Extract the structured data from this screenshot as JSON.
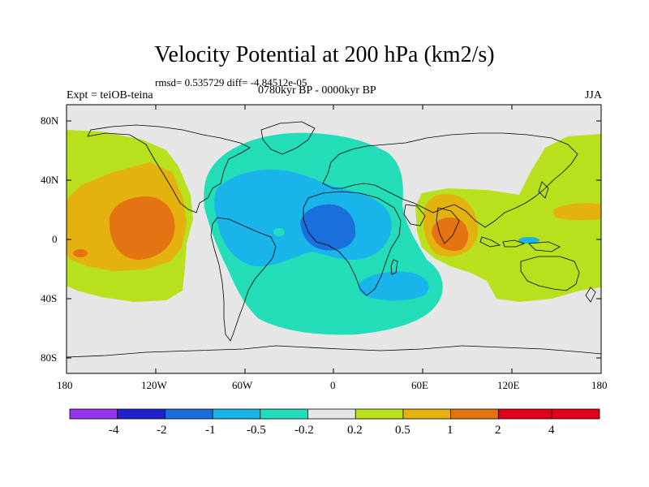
{
  "title": "Velocity Potential at 200 hPa (km2/s)",
  "stats": "rmsd= 0.535729  diff= -4.84512e-05",
  "experiment": "Expt = teiOB-teina",
  "period": "0780kyr BP - 0000kyr BP",
  "season": "JJA",
  "lat_ticks": [
    "80N",
    "40N",
    "0",
    "40S",
    "80S"
  ],
  "lon_ticks": [
    "180",
    "120W",
    "60W",
    "0",
    "60E",
    "120E",
    "180"
  ],
  "colorbar": {
    "colors": [
      "#9933ee",
      "#2222cc",
      "#1a6fdc",
      "#18b4ea",
      "#22ddb8",
      "#e6e6e6",
      "#b9e01c",
      "#e3b20f",
      "#e47311",
      "#e0001b"
    ],
    "labels": [
      "-4",
      "-2",
      "-1",
      "-0.5",
      "-0.2",
      "0.2",
      "0.5",
      "1",
      "2",
      "4"
    ]
  },
  "colors": {
    "neutral": "#e6e6e6",
    "lime": "#b9e01c",
    "gold": "#e3b20f",
    "orange": "#e47311",
    "teal": "#22ddb8",
    "cyan": "#18b4ea",
    "blue": "#1a6fdc"
  }
}
